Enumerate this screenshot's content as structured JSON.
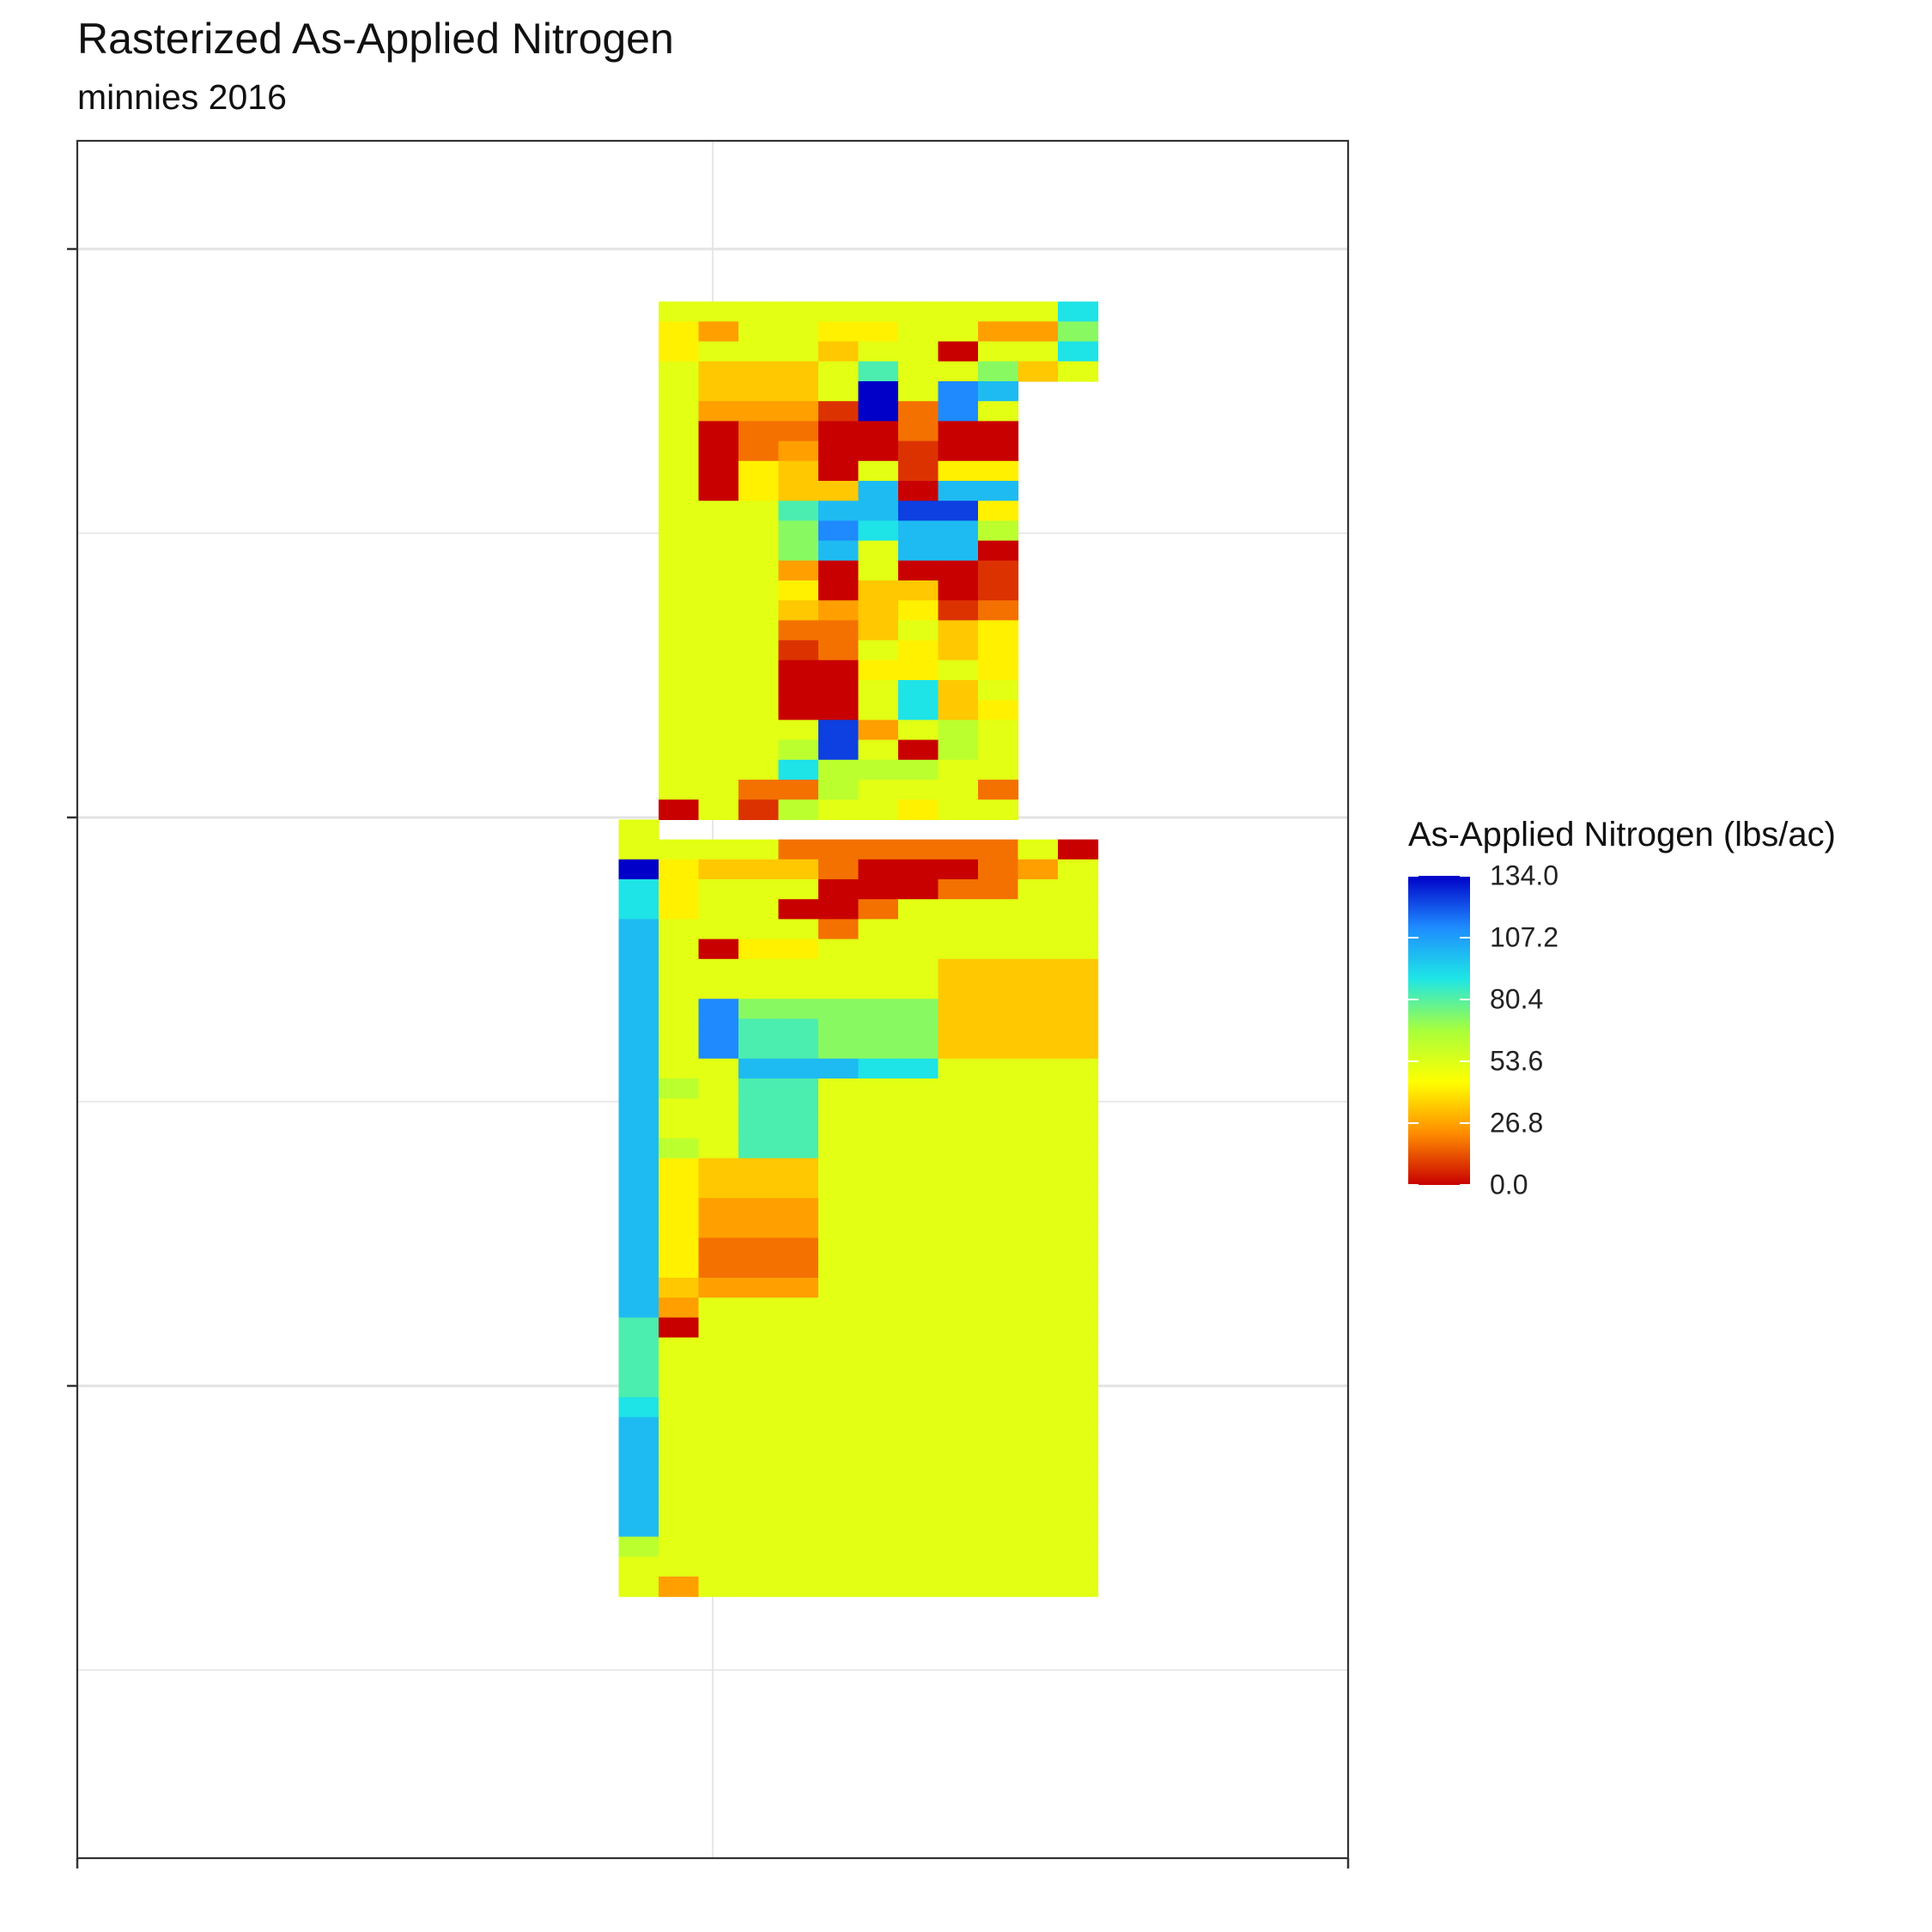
{
  "title": "Rasterized As-Applied Nitrogen",
  "subtitle": "minnies 2016",
  "legend": {
    "title": "As-Applied Nitrogen (lbs/ac)",
    "labels": [
      "134.0",
      "107.2",
      "80.4",
      "53.6",
      "26.8",
      "0.0"
    ],
    "colors": [
      "#0000c8",
      "#1e8cff",
      "#1ee6e6",
      "#a8ff3c",
      "#ffff00",
      "#ff8c00",
      "#c80000"
    ]
  },
  "chart_data": {
    "type": "heatmap",
    "title": "Rasterized As-Applied Nitrogen",
    "subtitle": "minnies 2016",
    "value_label": "As-Applied Nitrogen (lbs/ac)",
    "value_range": [
      0,
      134
    ],
    "xlabel": "",
    "ylabel": "",
    "axis_tick_labels": "none",
    "grid": true,
    "legend_position": "right",
    "colorscale": [
      "#c80000",
      "#ff8c00",
      "#ffff00",
      "#a8ff3c",
      "#1ee6e6",
      "#1e8cff",
      "#0000c8"
    ],
    "value_map": {
      "A": 0,
      "B": 8,
      "C": 18,
      "D": 26,
      "E": 34,
      "F": 42,
      "G": 52,
      "H": 62,
      "I": 72,
      "J": 82,
      "K": 90,
      "L": 100,
      "M": 112,
      "N": 124,
      "O": 134
    },
    "columns": 19,
    "rows": [
      "...................",
      "........GGGGGGGGGGK",
      "........FDGGFFGGDDI",
      "........FGGGEGGAGGK",
      "........GEEEGJGGIEG",
      "........GEEEGOGML..",
      "........GDDDBOCMG..",
      "........GACCAACAA..",
      "........GACDAABAA..",
      "........GAFEAGBFF..",
      "........GAFEELALL..",
      "........GGGJLLNNF..",
      "........GGGIMKLLH..",
      "........GGGILGLLA..",
      "........GGGDAGAAB..",
      "........GGGFAEEAB..",
      "........GGGEDEFBC..",
      "........GGGCCEGEF..",
      "........GGGBCGFEF..",
      "........GGGAAFFGF..",
      "........GGGAAGKEG..",
      "........GGGAAGKEF..",
      "........GGGGNDGHG..",
      "........GGGHNGAHG..",
      "........GGGKHHHGG..",
      "........GGCCHGGGC..",
      "........AGBHGGFGG..",
      ".......G...........",
      ".......GGGGCCCCCCGA",
      ".......OFEEECAAACDG",
      ".......KFGGGAAACCGG",
      ".......KFGGAACGGGGG",
      ".......LGGGGCGGGGGG",
      ".......LGAFFGGGGGGG",
      ".......LGGGGGGGEEEE",
      ".......LGGGGGGGEEEE",
      ".......LGMIIIIIEEEE",
      ".......LGMJJIIIEEEE",
      ".......LGMJJIIIEEEE",
      ".......LGGLLLKKGGGG",
      ".......LHGJJGGGGGGG",
      ".......LGGJJGGGGGGG",
      ".......LGGJJGGGGGGG",
      ".......LHGJJGGGGGGG",
      ".......LFEEEGGGGGGG",
      ".......LFEEEGGGGGGG",
      ".......LFDDDGGGGGGG",
      ".......LFDDDGGGGGGG",
      ".......LFCCCGGGGGGG",
      ".......LFCCCGGGGGGG",
      ".......LEDDDGGGGGGG",
      ".......LDGGGGGGGGGG",
      ".......JAGGGGGGGGGG",
      ".......JGGGGGGGGGGG",
      ".......JGGGGGGGGGGG",
      ".......JGGGGGGGGGGG",
      ".......KGGGGGGGGGGG",
      ".......LGGGGGGGGGGG",
      ".......LGGGGGGGGGGG",
      ".......LGGGGGGGGGGG",
      ".......LGGGGGGGGGGG",
      ".......LGGGGGGGGGGG",
      ".......LGGGGGGGGGGG",
      ".......HGGGGGGGGGGG",
      ".......GGGGGGGGGGGG",
      ".......GDGGGGGGGGGG"
    ]
  }
}
